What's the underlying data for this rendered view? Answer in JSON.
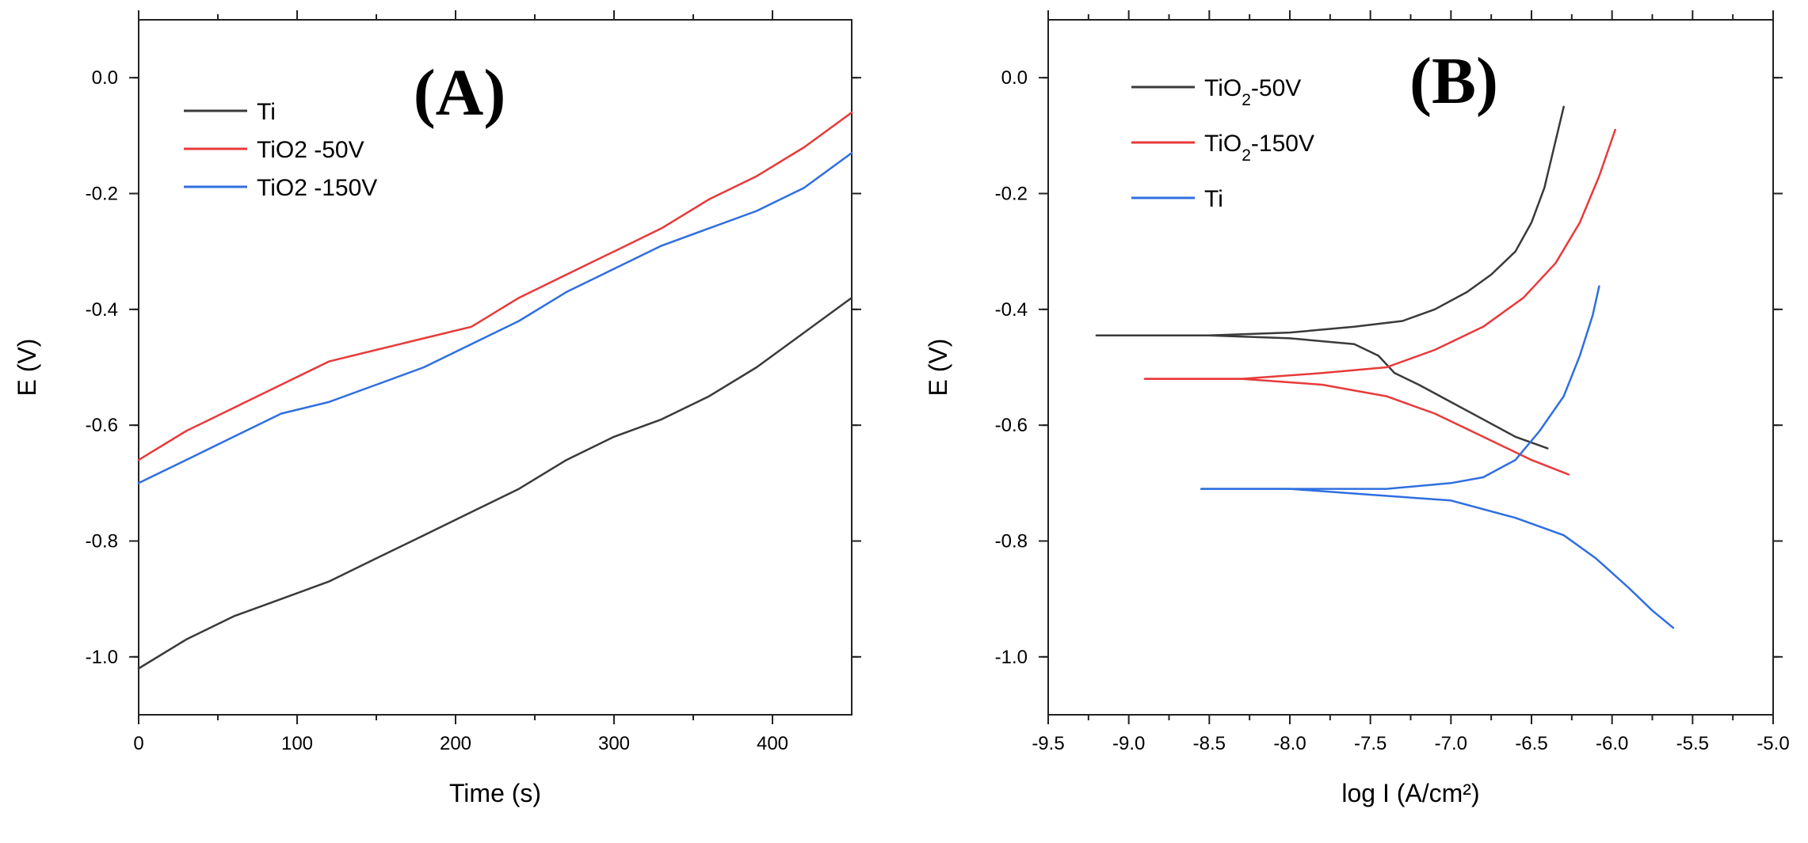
{
  "chart_data": [
    {
      "type": "line",
      "panel_label": "(A)",
      "xlabel": "Time (s)",
      "ylabel": "E (V)",
      "xlim": [
        0,
        450
      ],
      "ylim": [
        -1.1,
        0.1
      ],
      "xticks": [
        0,
        100,
        200,
        300,
        400
      ],
      "xtick_labels": [
        "0",
        "100",
        "200",
        "300",
        "400"
      ],
      "yticks": [
        0.0,
        -0.2,
        -0.4,
        -0.6,
        -0.8,
        -1.0
      ],
      "ytick_labels": [
        "0.0",
        "-0.2",
        "-0.4",
        "-0.6",
        "-0.8",
        "-1.0"
      ],
      "legend_position": "top-left",
      "series": [
        {
          "name": "Ti",
          "color": "#3a3a3a",
          "x": [
            0,
            30,
            60,
            90,
            120,
            150,
            180,
            210,
            240,
            270,
            300,
            330,
            360,
            390,
            420,
            450
          ],
          "y": [
            -1.02,
            -0.97,
            -0.93,
            -0.9,
            -0.87,
            -0.83,
            -0.79,
            -0.75,
            -0.71,
            -0.66,
            -0.62,
            -0.59,
            -0.55,
            -0.5,
            -0.44,
            -0.38
          ]
        },
        {
          "name": "TiO2 -50V",
          "color": "#e83a3a",
          "x": [
            0,
            30,
            60,
            90,
            120,
            150,
            180,
            210,
            240,
            270,
            300,
            330,
            360,
            390,
            420,
            450
          ],
          "y": [
            -0.66,
            -0.61,
            -0.57,
            -0.53,
            -0.49,
            -0.47,
            -0.45,
            -0.43,
            -0.38,
            -0.34,
            -0.3,
            -0.26,
            -0.21,
            -0.17,
            -0.12,
            -0.06
          ]
        },
        {
          "name": "TiO2 -150V",
          "color": "#2f6fe0",
          "x": [
            0,
            30,
            60,
            90,
            120,
            150,
            180,
            210,
            240,
            270,
            300,
            330,
            360,
            390,
            420,
            450
          ],
          "y": [
            -0.7,
            -0.66,
            -0.62,
            -0.58,
            -0.56,
            -0.53,
            -0.5,
            -0.46,
            -0.42,
            -0.37,
            -0.33,
            -0.29,
            -0.26,
            -0.23,
            -0.19,
            -0.13
          ]
        }
      ]
    },
    {
      "type": "line",
      "panel_label": "(B)",
      "xlabel": "log I (A/cm²)",
      "ylabel": "E (V)",
      "xlim": [
        -9.5,
        -5.0
      ],
      "ylim": [
        -1.1,
        0.1
      ],
      "xticks": [
        -9.5,
        -9.0,
        -8.5,
        -8.0,
        -7.5,
        -7.0,
        -6.5,
        -6.0,
        -5.5,
        -5.0
      ],
      "xtick_labels": [
        "-9.5",
        "-9.0",
        "-8.5",
        "-8.0",
        "-7.5",
        "-7.0",
        "-6.5",
        "-6.0",
        "-5.5",
        "-5.0"
      ],
      "yticks": [
        0.0,
        -0.2,
        -0.4,
        -0.6,
        -0.8,
        -1.0
      ],
      "ytick_labels": [
        "0.0",
        "-0.2",
        "-0.4",
        "-0.6",
        "-0.8",
        "-1.0"
      ],
      "legend_position": "top-left",
      "series": [
        {
          "name": "TiO₂-50V",
          "color": "#3a3a3a",
          "branches": [
            {
              "x": [
                -9.2,
                -8.5,
                -8.0,
                -7.6,
                -7.3,
                -7.1,
                -6.9,
                -6.75,
                -6.6,
                -6.5,
                -6.42,
                -6.36,
                -6.3
              ],
              "y": [
                -0.445,
                -0.445,
                -0.44,
                -0.43,
                -0.42,
                -0.4,
                -0.37,
                -0.34,
                -0.3,
                -0.25,
                -0.19,
                -0.12,
                -0.05
              ]
            },
            {
              "x": [
                -9.2,
                -8.5,
                -8.0,
                -7.6,
                -7.45,
                -7.35,
                -7.2,
                -7.0,
                -6.8,
                -6.6,
                -6.4
              ],
              "y": [
                -0.445,
                -0.445,
                -0.45,
                -0.46,
                -0.48,
                -0.51,
                -0.53,
                -0.56,
                -0.59,
                -0.62,
                -0.64
              ]
            }
          ]
        },
        {
          "name": "TiO₂-150V",
          "color": "#e83a3a",
          "branches": [
            {
              "x": [
                -8.9,
                -8.3,
                -7.8,
                -7.4,
                -7.1,
                -6.8,
                -6.55,
                -6.35,
                -6.2,
                -6.08,
                -5.98
              ],
              "y": [
                -0.52,
                -0.52,
                -0.51,
                -0.5,
                -0.47,
                -0.43,
                -0.38,
                -0.32,
                -0.25,
                -0.17,
                -0.09
              ]
            },
            {
              "x": [
                -8.9,
                -8.3,
                -7.8,
                -7.4,
                -7.1,
                -6.8,
                -6.5,
                -6.27
              ],
              "y": [
                -0.52,
                -0.52,
                -0.53,
                -0.55,
                -0.58,
                -0.62,
                -0.66,
                -0.685
              ]
            }
          ]
        },
        {
          "name": "Ti",
          "color": "#2f6fe0",
          "branches": [
            {
              "x": [
                -8.55,
                -8.0,
                -7.4,
                -7.0,
                -6.8,
                -6.6,
                -6.45,
                -6.3,
                -6.2,
                -6.12,
                -6.08
              ],
              "y": [
                -0.71,
                -0.71,
                -0.71,
                -0.7,
                -0.69,
                -0.66,
                -0.61,
                -0.55,
                -0.48,
                -0.41,
                -0.36
              ]
            },
            {
              "x": [
                -8.55,
                -8.0,
                -7.5,
                -7.0,
                -6.6,
                -6.3,
                -6.1,
                -5.9,
                -5.75,
                -5.62
              ],
              "y": [
                -0.71,
                -0.71,
                -0.72,
                -0.73,
                -0.76,
                -0.79,
                -0.83,
                -0.88,
                -0.92,
                -0.95
              ]
            }
          ]
        }
      ]
    }
  ]
}
